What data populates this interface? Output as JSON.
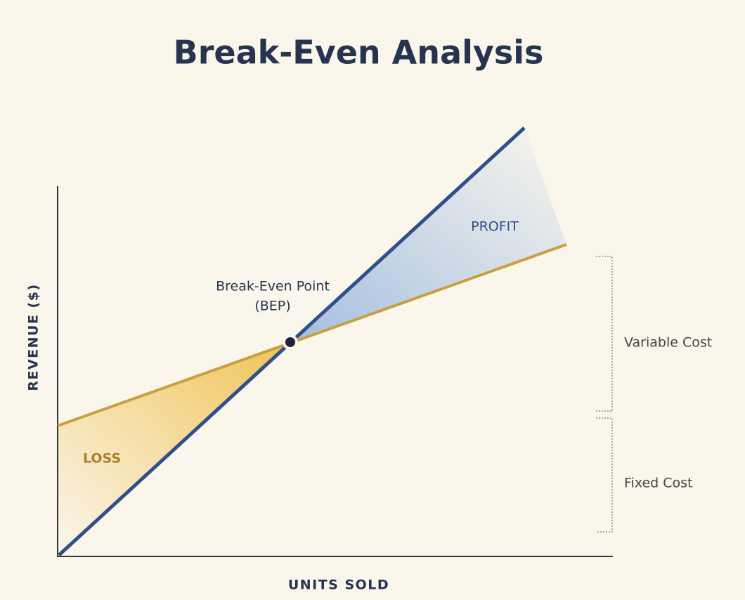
{
  "title": "Break-Even Analysis",
  "axes": {
    "y_label": "REVENUE ($)",
    "x_label": "UNITS SOLD"
  },
  "regions": {
    "profit": "PROFIT",
    "loss": "LOSS"
  },
  "break_even": {
    "lines": [
      "Break-Even Point",
      "(BEP)"
    ]
  },
  "brackets": {
    "variable_cost": "Variable Cost",
    "fixed_cost": "Fixed Cost"
  }
}
